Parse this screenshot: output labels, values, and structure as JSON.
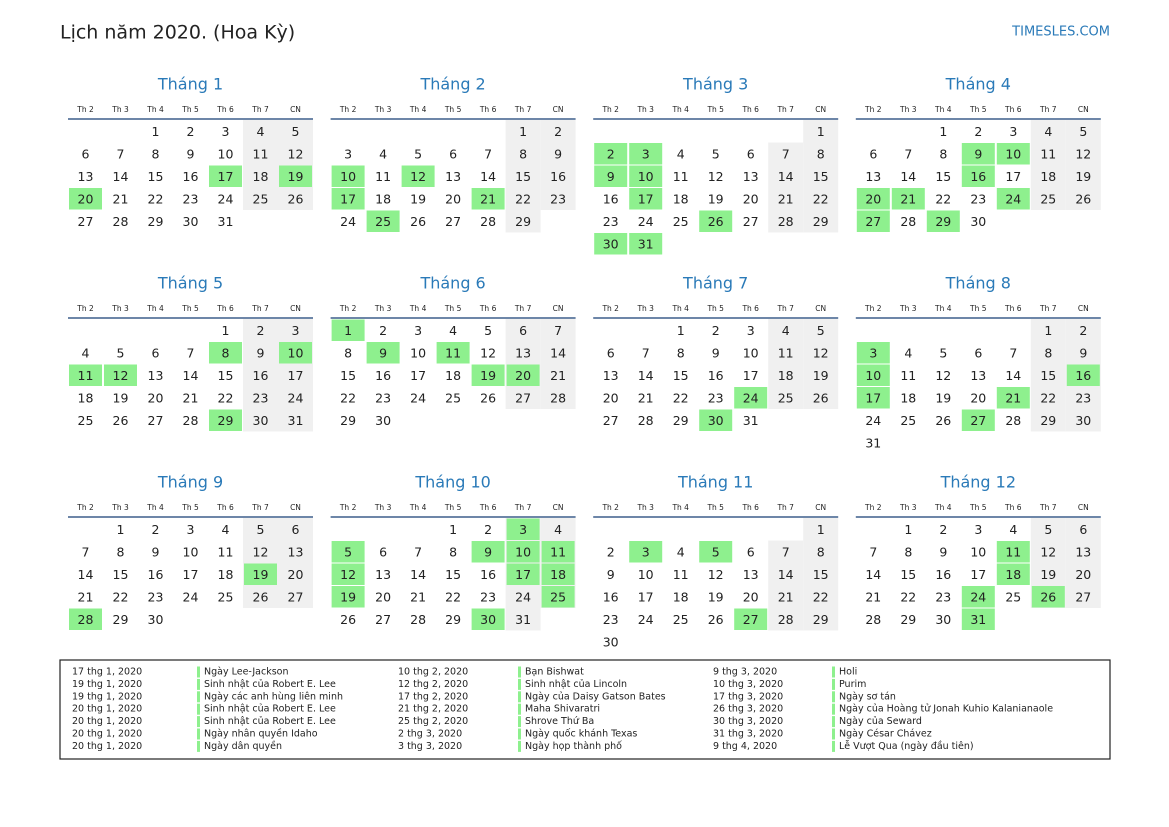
{
  "header": {
    "title": "Lịch năm 2020. (Hoa Kỳ)",
    "site": "TIMESLES.COM"
  },
  "weekdays": [
    "Th 2",
    "Th 3",
    "Th 4",
    "Th 5",
    "Th 6",
    "Th 7",
    "CN"
  ],
  "months": [
    {
      "name": "Tháng 1",
      "weeks": [
        [
          null,
          null,
          1,
          2,
          3,
          4,
          5
        ],
        [
          6,
          7,
          8,
          9,
          10,
          11,
          12
        ],
        [
          13,
          14,
          15,
          16,
          17,
          18,
          19
        ],
        [
          20,
          21,
          22,
          23,
          24,
          25,
          26
        ],
        [
          27,
          28,
          29,
          30,
          31,
          null,
          null
        ]
      ],
      "holidays": [
        17,
        19,
        20
      ]
    },
    {
      "name": "Tháng 2",
      "weeks": [
        [
          null,
          null,
          null,
          null,
          null,
          1,
          2
        ],
        [
          3,
          4,
          5,
          6,
          7,
          8,
          9
        ],
        [
          10,
          11,
          12,
          13,
          14,
          15,
          16
        ],
        [
          17,
          18,
          19,
          20,
          21,
          22,
          23
        ],
        [
          24,
          25,
          26,
          27,
          28,
          29,
          null
        ]
      ],
      "holidays": [
        10,
        12,
        17,
        21,
        25
      ]
    },
    {
      "name": "Tháng 3",
      "weeks": [
        [
          null,
          null,
          null,
          null,
          null,
          null,
          1
        ],
        [
          2,
          3,
          4,
          5,
          6,
          7,
          8
        ],
        [
          9,
          10,
          11,
          12,
          13,
          14,
          15
        ],
        [
          16,
          17,
          18,
          19,
          20,
          21,
          22
        ],
        [
          23,
          24,
          25,
          26,
          27,
          28,
          29
        ],
        [
          30,
          31,
          null,
          null,
          null,
          null,
          null
        ]
      ],
      "holidays": [
        2,
        3,
        9,
        10,
        17,
        26,
        30,
        31
      ]
    },
    {
      "name": "Tháng 4",
      "weeks": [
        [
          null,
          null,
          1,
          2,
          3,
          4,
          5
        ],
        [
          6,
          7,
          8,
          9,
          10,
          11,
          12
        ],
        [
          13,
          14,
          15,
          16,
          17,
          18,
          19
        ],
        [
          20,
          21,
          22,
          23,
          24,
          25,
          26
        ],
        [
          27,
          28,
          29,
          30,
          null,
          null,
          null
        ]
      ],
      "holidays": [
        9,
        10,
        16,
        20,
        21,
        24,
        27,
        29
      ]
    },
    {
      "name": "Tháng 5",
      "weeks": [
        [
          null,
          null,
          null,
          null,
          1,
          2,
          3
        ],
        [
          4,
          5,
          6,
          7,
          8,
          9,
          10
        ],
        [
          11,
          12,
          13,
          14,
          15,
          16,
          17
        ],
        [
          18,
          19,
          20,
          21,
          22,
          23,
          24
        ],
        [
          25,
          26,
          27,
          28,
          29,
          30,
          31
        ]
      ],
      "holidays": [
        8,
        10,
        11,
        12,
        29
      ]
    },
    {
      "name": "Tháng 6",
      "weeks": [
        [
          1,
          2,
          3,
          4,
          5,
          6,
          7
        ],
        [
          8,
          9,
          10,
          11,
          12,
          13,
          14
        ],
        [
          15,
          16,
          17,
          18,
          19,
          20,
          21
        ],
        [
          22,
          23,
          24,
          25,
          26,
          27,
          28
        ],
        [
          29,
          30,
          null,
          null,
          null,
          null,
          null
        ]
      ],
      "holidays": [
        1,
        9,
        11,
        19,
        20
      ]
    },
    {
      "name": "Tháng 7",
      "weeks": [
        [
          null,
          null,
          1,
          2,
          3,
          4,
          5
        ],
        [
          6,
          7,
          8,
          9,
          10,
          11,
          12
        ],
        [
          13,
          14,
          15,
          16,
          17,
          18,
          19
        ],
        [
          20,
          21,
          22,
          23,
          24,
          25,
          26
        ],
        [
          27,
          28,
          29,
          30,
          31,
          null,
          null
        ]
      ],
      "holidays": [
        24,
        30
      ]
    },
    {
      "name": "Tháng 8",
      "weeks": [
        [
          null,
          null,
          null,
          null,
          null,
          1,
          2
        ],
        [
          3,
          4,
          5,
          6,
          7,
          8,
          9
        ],
        [
          10,
          11,
          12,
          13,
          14,
          15,
          16
        ],
        [
          17,
          18,
          19,
          20,
          21,
          22,
          23
        ],
        [
          24,
          25,
          26,
          27,
          28,
          29,
          30
        ],
        [
          31,
          null,
          null,
          null,
          null,
          null,
          null
        ]
      ],
      "holidays": [
        3,
        10,
        16,
        17,
        21,
        27
      ]
    },
    {
      "name": "Tháng 9",
      "weeks": [
        [
          null,
          1,
          2,
          3,
          4,
          5,
          6
        ],
        [
          7,
          8,
          9,
          10,
          11,
          12,
          13
        ],
        [
          14,
          15,
          16,
          17,
          18,
          19,
          20
        ],
        [
          21,
          22,
          23,
          24,
          25,
          26,
          27
        ],
        [
          28,
          29,
          30,
          null,
          null,
          null,
          null
        ]
      ],
      "holidays": [
        19,
        28
      ]
    },
    {
      "name": "Tháng 10",
      "weeks": [
        [
          null,
          null,
          null,
          1,
          2,
          3,
          4
        ],
        [
          5,
          6,
          7,
          8,
          9,
          10,
          11
        ],
        [
          12,
          13,
          14,
          15,
          16,
          17,
          18
        ],
        [
          19,
          20,
          21,
          22,
          23,
          24,
          25
        ],
        [
          26,
          27,
          28,
          29,
          30,
          31,
          null
        ]
      ],
      "holidays": [
        3,
        5,
        9,
        10,
        11,
        12,
        17,
        18,
        19,
        25,
        30
      ]
    },
    {
      "name": "Tháng 11",
      "weeks": [
        [
          null,
          null,
          null,
          null,
          null,
          null,
          1
        ],
        [
          2,
          3,
          4,
          5,
          6,
          7,
          8
        ],
        [
          9,
          10,
          11,
          12,
          13,
          14,
          15
        ],
        [
          16,
          17,
          18,
          19,
          20,
          21,
          22
        ],
        [
          23,
          24,
          25,
          26,
          27,
          28,
          29
        ],
        [
          30,
          null,
          null,
          null,
          null,
          null,
          null
        ]
      ],
      "holidays": [
        3,
        5,
        27
      ]
    },
    {
      "name": "Tháng 12",
      "weeks": [
        [
          null,
          1,
          2,
          3,
          4,
          5,
          6
        ],
        [
          7,
          8,
          9,
          10,
          11,
          12,
          13
        ],
        [
          14,
          15,
          16,
          17,
          18,
          19,
          20
        ],
        [
          21,
          22,
          23,
          24,
          25,
          26,
          27
        ],
        [
          28,
          29,
          30,
          31,
          null,
          null,
          null
        ]
      ],
      "holidays": [
        11,
        18,
        24,
        26,
        31
      ]
    }
  ],
  "holiday_list": [
    [
      "17 thg 1, 2020",
      "Ngày Lee-Jackson"
    ],
    [
      "19 thg 1, 2020",
      "Sinh nhật của Robert E. Lee"
    ],
    [
      "19 thg 1, 2020",
      "Ngày các anh hùng liên minh"
    ],
    [
      "20 thg 1, 2020",
      "Sinh nhật của Robert E. Lee"
    ],
    [
      "20 thg 1, 2020",
      "Sinh nhật của Robert E. Lee"
    ],
    [
      "20 thg 1, 2020",
      "Ngày nhân quyền Idaho"
    ],
    [
      "20 thg 1, 2020",
      "Ngày dân quyền"
    ],
    [
      "10 thg 2, 2020",
      "Bạn Bishwat"
    ],
    [
      "12 thg 2, 2020",
      "Sinh nhật của Lincoln"
    ],
    [
      "17 thg 2, 2020",
      "Ngày của Daisy Gatson Bates"
    ],
    [
      "21 thg 2, 2020",
      "Maha Shivaratri"
    ],
    [
      "25 thg 2, 2020",
      "Shrove Thứ Ba"
    ],
    [
      "2 thg 3, 2020",
      "Ngày quốc khánh Texas"
    ],
    [
      "3 thg 3, 2020",
      "Ngày họp thành phố"
    ],
    [
      "9 thg 3, 2020",
      "Holi"
    ],
    [
      "10 thg 3, 2020",
      "Purim"
    ],
    [
      "17 thg 3, 2020",
      "Ngày sơ tán"
    ],
    [
      "26 thg 3, 2020",
      "Ngày của Hoàng tử Jonah Kuhio Kalanianaole"
    ],
    [
      "30 thg 3, 2020",
      "Ngày của Seward"
    ],
    [
      "31 thg 3, 2020",
      "Ngày César Chávez"
    ],
    [
      "9 thg 4, 2020",
      "Lễ Vượt Qua (ngày đầu tiên)"
    ]
  ]
}
